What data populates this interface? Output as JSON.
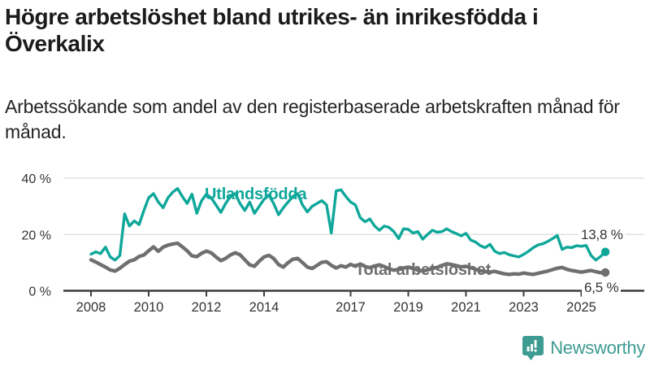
{
  "header": {
    "title": "Högre arbetslöshet bland utrikes- än inrikesfödda i Överkalix",
    "subtitle": "Arbetssökande som andel av den registerbaserade arbetskraften månad för månad."
  },
  "chart_data": {
    "type": "line",
    "title": "Arbetssökande som andel av den registerbaserade arbetskraften månad för månad",
    "unit": "%",
    "grid": true,
    "legend_position": "inline-series-labels",
    "x_axis": {
      "ticks": [
        {
          "year": 2008,
          "label": "2008"
        },
        {
          "year": 2010,
          "label": "2010"
        },
        {
          "year": 2012,
          "label": "2012"
        },
        {
          "year": 2014,
          "label": "2014"
        },
        {
          "year": 2017,
          "label": "2017"
        },
        {
          "year": 2019,
          "label": "2019"
        },
        {
          "year": 2021,
          "label": "2021"
        },
        {
          "year": 2023,
          "label": "2023"
        },
        {
          "year": 2025,
          "label": "2025"
        }
      ]
    },
    "y_axis": {
      "range": [
        0,
        43
      ],
      "ticks": [
        {
          "value": 0,
          "label": "0 %"
        },
        {
          "value": 20,
          "label": "20 %"
        },
        {
          "value": 40,
          "label": "40 %"
        }
      ]
    },
    "time": {
      "start_year": 2008.0,
      "points_per_year": 6,
      "end_year": 2025.83
    },
    "series": [
      {
        "name": "Utlandsfödda",
        "color": "#0ea79a",
        "end_label": "13,8 %",
        "end_value": 13.8,
        "values": [
          13.0,
          13.8,
          13.2,
          15.5,
          12.0,
          10.9,
          12.5,
          27.3,
          23.0,
          24.8,
          23.5,
          28.5,
          33.0,
          34.5,
          31.5,
          29.5,
          33.0,
          35.0,
          36.3,
          33.5,
          31.0,
          34.3,
          27.5,
          32.0,
          34.3,
          33.0,
          30.5,
          27.8,
          31.0,
          33.5,
          34.5,
          31.0,
          28.5,
          31.5,
          27.5,
          30.0,
          32.5,
          34.0,
          31.0,
          27.0,
          29.5,
          31.5,
          33.5,
          34.5,
          30.5,
          28.0,
          30.0,
          31.0,
          32.0,
          30.5,
          20.5,
          35.5,
          35.8,
          33.5,
          31.5,
          30.5,
          26.0,
          24.5,
          25.5,
          23.0,
          21.5,
          23.0,
          22.5,
          21.0,
          18.5,
          22.0,
          21.8,
          20.5,
          21.0,
          18.3,
          20.0,
          21.5,
          20.8,
          21.0,
          22.0,
          21.0,
          20.3,
          19.5,
          20.4,
          18.0,
          17.3,
          16.0,
          15.3,
          16.5,
          14.0,
          13.2,
          13.6,
          12.8,
          12.4,
          12.0,
          12.9,
          14.0,
          15.3,
          16.3,
          16.7,
          17.5,
          18.5,
          19.6,
          14.7,
          15.5,
          15.3,
          16.0,
          15.8,
          16.1,
          12.6,
          10.9,
          12.2,
          13.8
        ]
      },
      {
        "name": "Total arbetslöshet",
        "color": "#6f6f6f",
        "end_label": "6,5 %",
        "end_value": 6.5,
        "values": [
          11.0,
          10.2,
          9.3,
          8.4,
          7.4,
          7.0,
          8.0,
          9.3,
          10.5,
          11.0,
          12.2,
          12.7,
          14.2,
          15.6,
          14.0,
          15.5,
          16.2,
          16.6,
          16.9,
          15.6,
          14.2,
          12.4,
          12.1,
          13.3,
          14.1,
          13.5,
          12.0,
          10.7,
          11.5,
          12.7,
          13.5,
          12.8,
          11.0,
          9.2,
          8.7,
          10.5,
          12.0,
          12.6,
          11.5,
          9.3,
          8.4,
          10.0,
          11.2,
          11.5,
          10.0,
          8.4,
          7.9,
          9.0,
          10.1,
          10.3,
          9.0,
          8.1,
          8.9,
          8.4,
          9.4,
          8.7,
          9.5,
          8.6,
          8.2,
          8.8,
          9.2,
          8.6,
          7.8,
          7.3,
          7.6,
          8.1,
          8.4,
          7.9,
          7.3,
          7.0,
          7.4,
          7.9,
          8.3,
          9.0,
          9.6,
          9.3,
          8.9,
          8.5,
          8.7,
          8.2,
          7.6,
          7.1,
          6.8,
          6.6,
          6.9,
          6.4,
          6.0,
          5.8,
          6.0,
          5.9,
          6.3,
          6.0,
          5.8,
          6.2,
          6.6,
          7.0,
          7.5,
          8.0,
          8.3,
          7.6,
          7.2,
          6.9,
          6.6,
          6.9,
          7.2,
          6.8,
          6.4,
          6.5
        ]
      }
    ]
  },
  "branding": {
    "logo_text": "Newsworthy",
    "logo_color": "#3d9b91",
    "logo_icon": "speech-bubble-bar-chart-icon"
  }
}
